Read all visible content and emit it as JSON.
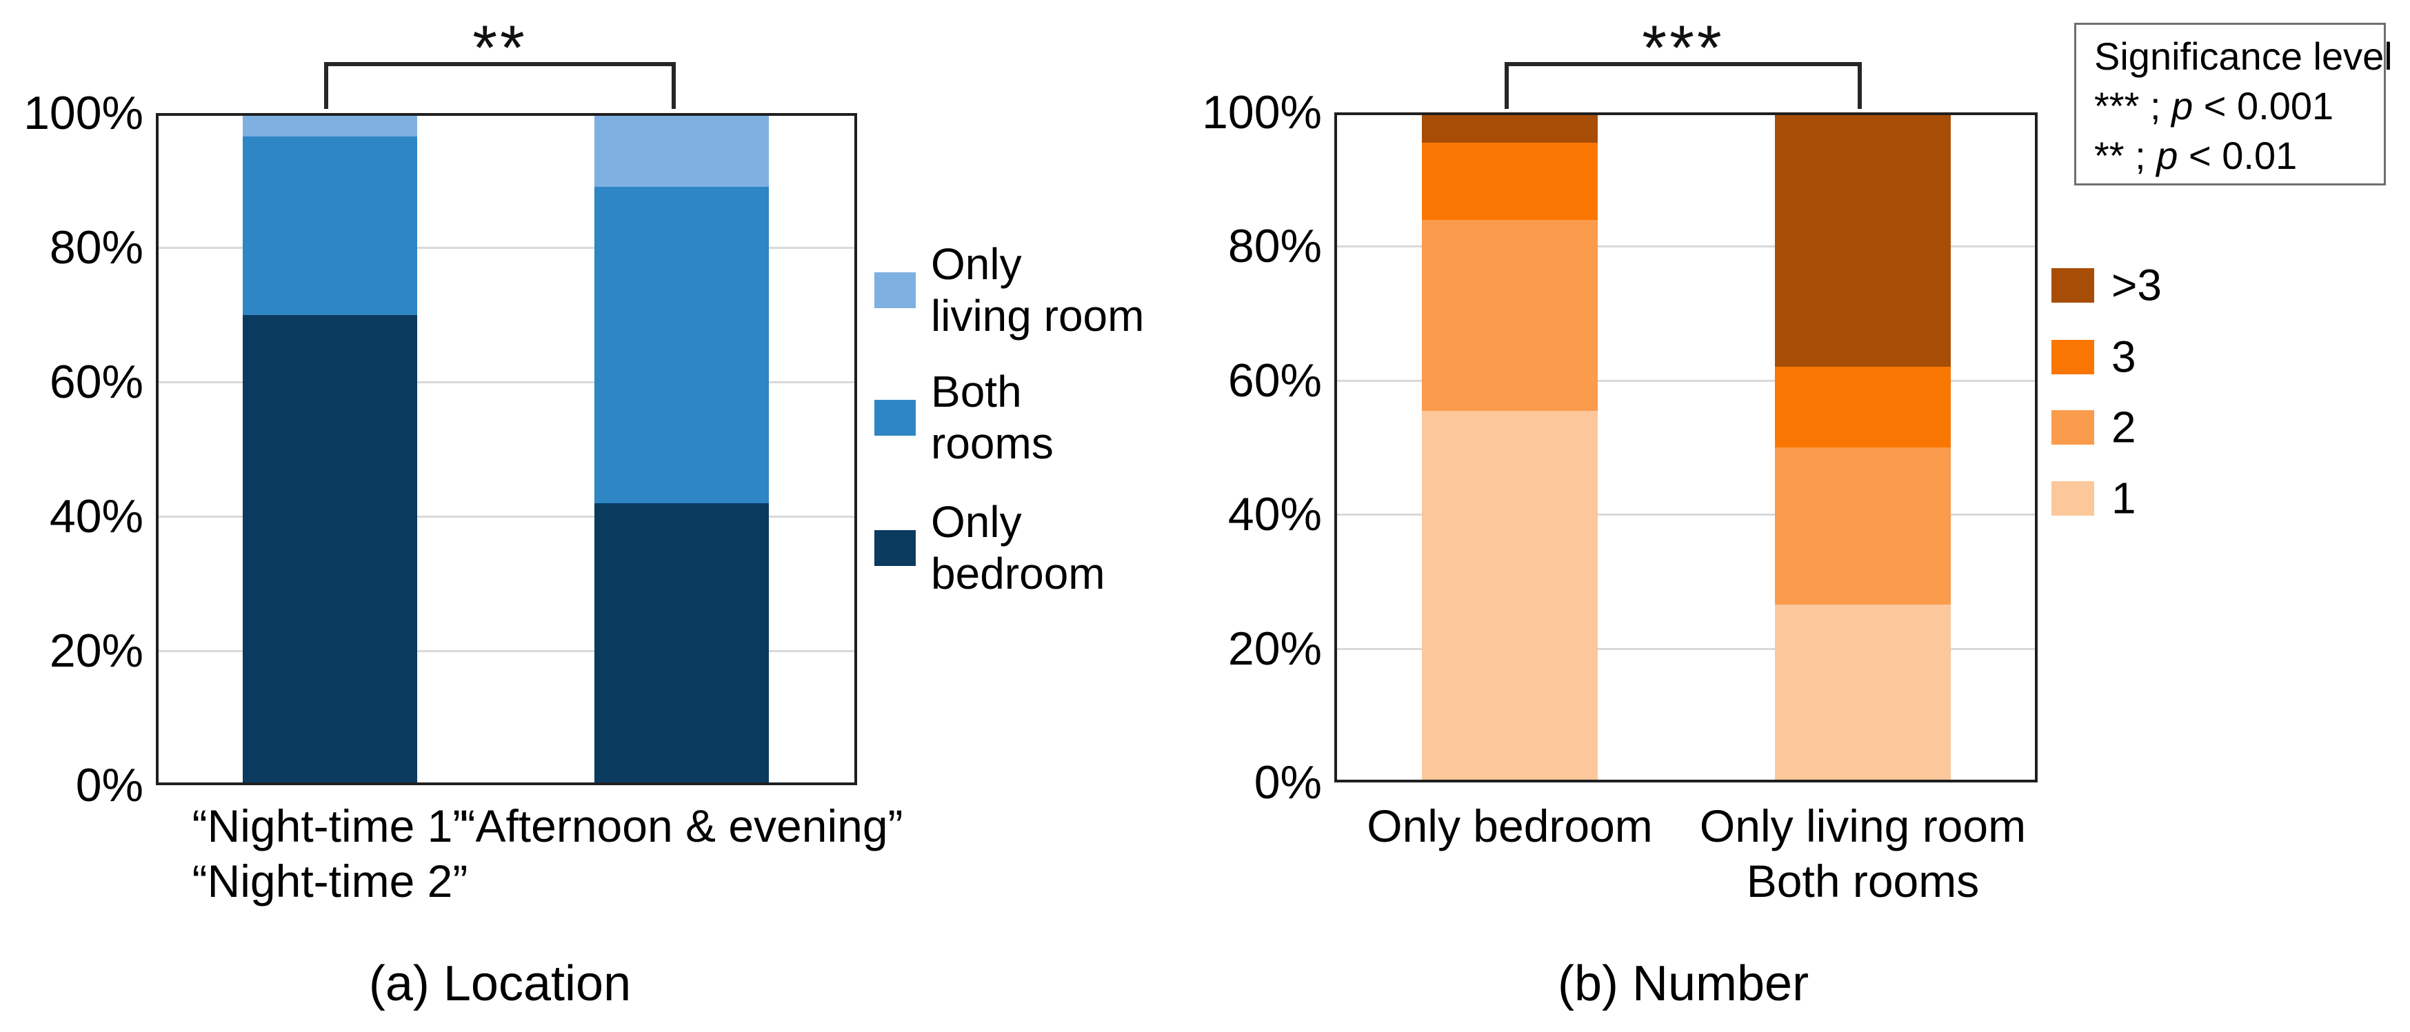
{
  "figure": {
    "background": "#ffffff",
    "significance_box": {
      "title": "Significance level",
      "entries": [
        {
          "stars": "***",
          "separator": " ; ",
          "symbol": "p",
          "condition": " < 0.001"
        },
        {
          "stars": "**",
          "separator": " ; ",
          "symbol": "p",
          "condition": " < 0.01"
        }
      ]
    }
  },
  "chart_data": [
    {
      "id": "location",
      "type": "bar",
      "stacked": true,
      "caption": "(a) Location",
      "categories": [
        [
          "“Night-time 1”",
          "“Night-time 2”"
        ],
        [
          "“Afternoon & evening”"
        ]
      ],
      "yticks": [
        "0%",
        "20%",
        "40%",
        "60%",
        "80%",
        "100%"
      ],
      "ylim": [
        0,
        100
      ],
      "grid": true,
      "legend_position": "right",
      "series": [
        {
          "name": "Only bedroom",
          "color": "#0b3a5f",
          "values": [
            70,
            42
          ]
        },
        {
          "name": "Both rooms",
          "color": "#2e86c5",
          "values": [
            26.5,
            47
          ]
        },
        {
          "name": "Only living room",
          "color": "#7eb1e2",
          "values": [
            3.5,
            11
          ]
        }
      ],
      "legend": [
        {
          "lines": [
            "Only",
            "living room"
          ],
          "color": "#7eb1e2"
        },
        {
          "lines": [
            "Both",
            "rooms"
          ],
          "color": "#2e86c5"
        },
        {
          "lines": [
            "Only",
            "bedroom"
          ],
          "color": "#0b3a5f"
        }
      ],
      "significance": {
        "label": "**",
        "from_category": 0,
        "to_category": 1
      }
    },
    {
      "id": "number",
      "type": "bar",
      "stacked": true,
      "caption": "(b) Number",
      "categories": [
        [
          "Only bedroom"
        ],
        [
          "Only living room",
          "Both rooms"
        ]
      ],
      "yticks": [
        "0%",
        "20%",
        "40%",
        "60%",
        "80%",
        "100%"
      ],
      "ylim": [
        0,
        100
      ],
      "grid": true,
      "legend_position": "right",
      "series": [
        {
          "name": "1",
          "color": "#fcc79a",
          "values": [
            55.5,
            26.5
          ]
        },
        {
          "name": "2",
          "color": "#fb9b4c",
          "values": [
            28.5,
            23.5
          ]
        },
        {
          "name": "3",
          "color": "#fa7603",
          "values": [
            11.5,
            12
          ]
        },
        {
          "name": ">3",
          "color": "#a74d06",
          "values": [
            4.5,
            38
          ]
        }
      ],
      "legend": [
        {
          "lines": [
            ">3"
          ],
          "color": "#a74d06"
        },
        {
          "lines": [
            "3"
          ],
          "color": "#fa7603"
        },
        {
          "lines": [
            "2"
          ],
          "color": "#fb9b4c"
        },
        {
          "lines": [
            "1"
          ],
          "color": "#fcc79a"
        }
      ],
      "significance": {
        "label": "***",
        "from_category": 0,
        "to_category": 1
      }
    }
  ]
}
